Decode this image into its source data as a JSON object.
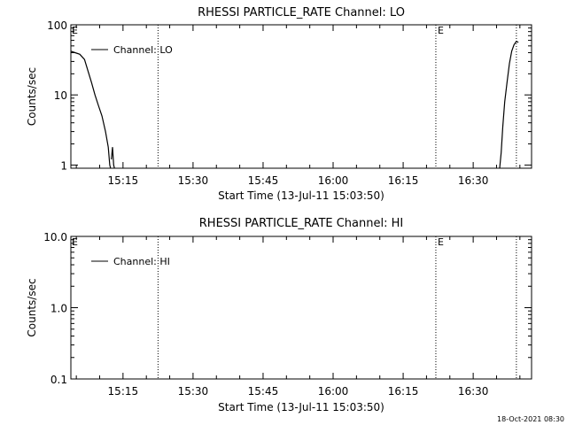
{
  "footer": {
    "timestamp": "18-Oct-2021 08:30"
  },
  "chart_data": [
    {
      "type": "line",
      "title": "RHESSI PARTICLE_RATE Channel: LO",
      "xlabel": "Start Time (13-Jul-11 15:03:50)",
      "ylabel": "Counts/sec",
      "y_scale": "log",
      "ylim": [
        0.9,
        100
      ],
      "xlim": [
        "15:03:50",
        "16:42:30"
      ],
      "x_ticks": [
        "15:15",
        "15:30",
        "15:45",
        "16:00",
        "16:15",
        "16:30"
      ],
      "y_ticks": [
        "1",
        "10",
        "100"
      ],
      "markers": [
        {
          "time": "15:22:30",
          "label": ""
        },
        {
          "time": "16:22:00",
          "label": "E"
        },
        {
          "time": "16:39:15",
          "label": ""
        }
      ],
      "start_marker_label": "E",
      "legend": {
        "position": "top-left",
        "entries": [
          "Channel: LO"
        ]
      },
      "series": [
        {
          "name": "Channel: LO",
          "segments": [
            [
              [
                "15:03:50",
                42
              ],
              [
                "15:04:45",
                40
              ],
              [
                "15:05:45",
                38
              ],
              [
                "15:06:45",
                32
              ],
              [
                "15:07:30",
                22
              ],
              [
                "15:08:15",
                15
              ],
              [
                "15:09:00",
                10
              ],
              [
                "15:09:45",
                7
              ],
              [
                "15:10:30",
                5
              ],
              [
                "15:11:15",
                3
              ],
              [
                "15:11:50",
                1.8
              ],
              [
                "15:12:10",
                1.0
              ],
              [
                "15:12:20",
                0.9
              ]
            ],
            [
              [
                "15:12:30",
                1.2
              ],
              [
                "15:12:45",
                1.8
              ],
              [
                "15:13:00",
                1.0
              ],
              [
                "15:13:10",
                0.9
              ]
            ],
            [
              [
                "16:35:40",
                0.9
              ],
              [
                "16:36:00",
                1.5
              ],
              [
                "16:36:20",
                3.5
              ],
              [
                "16:36:45",
                8
              ],
              [
                "16:37:15",
                15
              ],
              [
                "16:37:45",
                28
              ],
              [
                "16:38:15",
                42
              ],
              [
                "16:38:45",
                52
              ],
              [
                "16:39:15",
                58
              ],
              [
                "16:39:40",
                56
              ]
            ]
          ]
        }
      ]
    },
    {
      "type": "line",
      "title": "RHESSI PARTICLE_RATE Channel: HI",
      "xlabel": "Start Time (13-Jul-11 15:03:50)",
      "ylabel": "Counts/sec",
      "y_scale": "log",
      "ylim": [
        0.1,
        10
      ],
      "xlim": [
        "15:03:50",
        "16:42:30"
      ],
      "x_ticks": [
        "15:15",
        "15:30",
        "15:45",
        "16:00",
        "16:15",
        "16:30"
      ],
      "y_ticks": [
        "0.1",
        "1.0",
        "10.0"
      ],
      "markers": [
        {
          "time": "15:22:30",
          "label": ""
        },
        {
          "time": "16:22:00",
          "label": "E"
        },
        {
          "time": "16:39:15",
          "label": ""
        }
      ],
      "start_marker_label": "E",
      "legend": {
        "position": "top-left",
        "entries": [
          "Channel: HI"
        ]
      },
      "series": [
        {
          "name": "Channel: HI",
          "segments": []
        }
      ]
    }
  ]
}
